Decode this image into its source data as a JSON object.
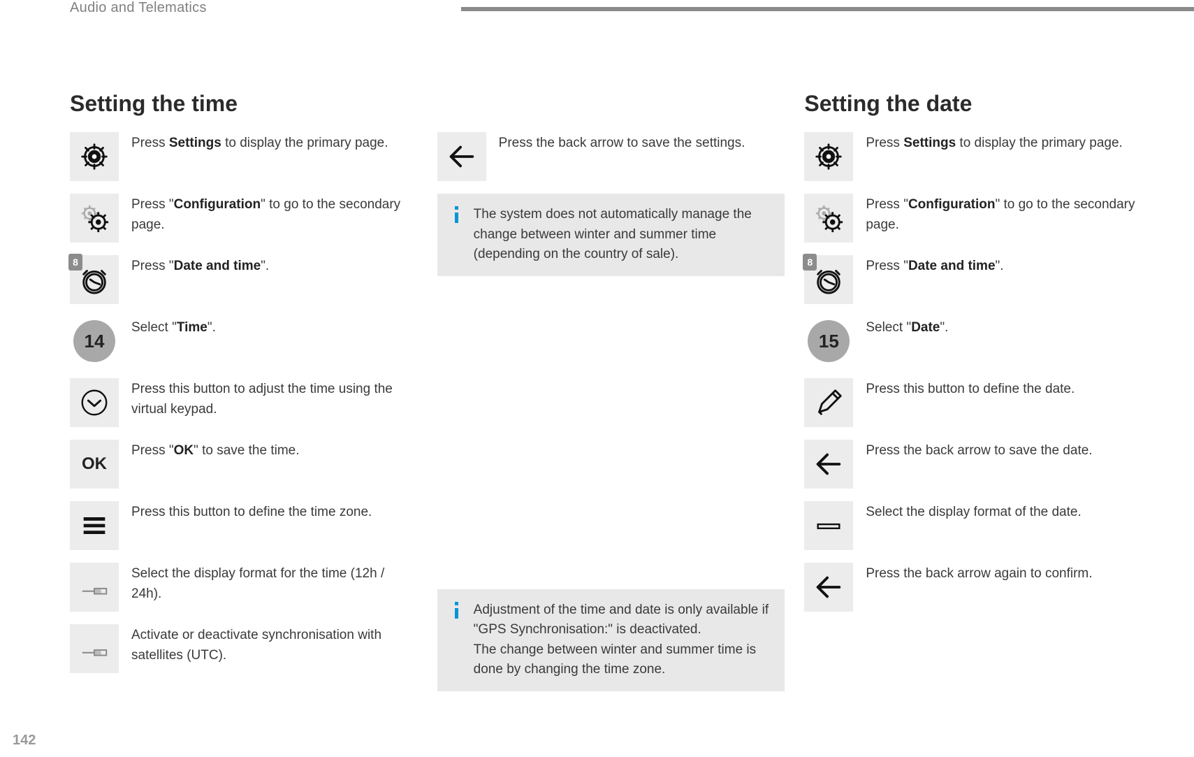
{
  "header": {
    "label": "Audio and Telematics"
  },
  "page_number": "142",
  "section_time": {
    "title": "Setting the time",
    "steps": [
      {
        "icon": "gear",
        "html": "Press <strong>Settings</strong> to display the primary page."
      },
      {
        "icon": "gears",
        "html": "Press \"<strong>Configuration</strong>\" to go to the secondary page."
      },
      {
        "icon": "clock8",
        "html": "Press \"<strong>Date and time</strong>\"."
      },
      {
        "icon": "num14",
        "html": "Select \"<strong>Time</strong>\"."
      },
      {
        "icon": "chev-circle",
        "html": "Press this button to adjust the time using the virtual keypad."
      },
      {
        "icon": "ok",
        "html": "Press \"<strong>OK</strong>\" to save the time."
      },
      {
        "icon": "three-lines",
        "html": "Press this button to define the time zone."
      },
      {
        "icon": "toggle",
        "html": "Select the display format for the time (12h / 24h)."
      },
      {
        "icon": "toggle",
        "html": "Activate or deactivate synchronisation with satellites (UTC)."
      }
    ]
  },
  "col2": {
    "back_step": {
      "icon": "back-arrow",
      "html": "Press the back arrow to save the settings."
    },
    "info1": "The system does not automatically manage the change between winter and summer time (depending on the country of sale).",
    "info2": "Adjustment of the time and date is only available if \"GPS Synchronisation:\" is deactivated.<br>The change between winter and summer time is done by changing the time zone."
  },
  "section_date": {
    "title": "Setting the date",
    "steps": [
      {
        "icon": "gear",
        "html": "Press <strong>Settings</strong> to display the primary page."
      },
      {
        "icon": "gears",
        "html": "Press \"<strong>Configuration</strong>\" to go to the secondary page."
      },
      {
        "icon": "clock8",
        "html": "Press \"<strong>Date and time</strong>\"."
      },
      {
        "icon": "num15",
        "html": "Select \"<strong>Date</strong>\"."
      },
      {
        "icon": "pencil",
        "html": "Press this button to define the date."
      },
      {
        "icon": "back-arrow",
        "html": "Press the back arrow to save the date."
      },
      {
        "icon": "one-line",
        "html": "Select the display format of the date."
      },
      {
        "icon": "back-arrow",
        "html": "Press the back arrow again to confirm."
      }
    ]
  },
  "icons": {
    "num14_label": "14",
    "num15_label": "15",
    "ok_label": "OK",
    "badge8": "8"
  },
  "colors": {
    "icon_bg": "#ececec",
    "info_bg": "#e8e8e8",
    "text": "#3a3a3a",
    "rule": "#8a8a8a",
    "info_i": "#0096d6"
  }
}
